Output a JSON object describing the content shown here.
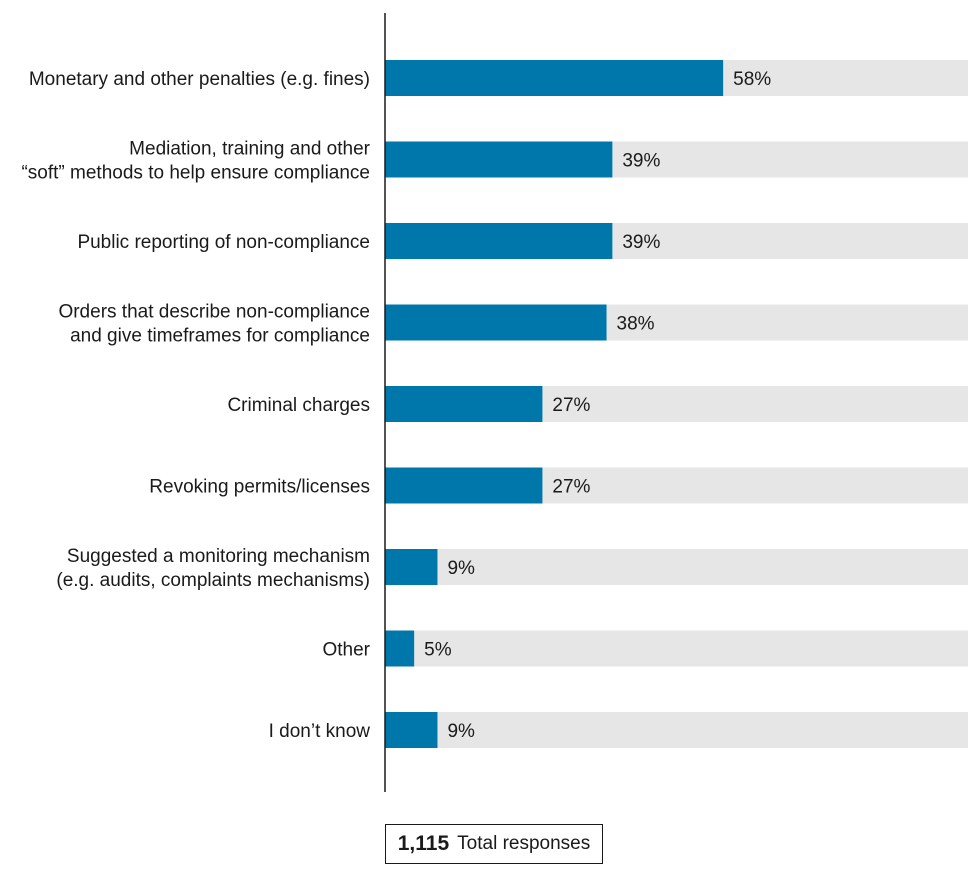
{
  "chart_data": {
    "type": "bar",
    "orientation": "horizontal",
    "categories": [
      [
        "Monetary and other penalties (e.g. fines)"
      ],
      [
        "Mediation, training and other",
        "“soft” methods to help ensure compliance"
      ],
      [
        "Public reporting of non-compliance"
      ],
      [
        "Orders that describe non-compliance",
        "and give timeframes for compliance"
      ],
      [
        "Criminal charges"
      ],
      [
        "Revoking permits/licenses"
      ],
      [
        "Suggested a monitoring mechanism",
        "(e.g. audits, complaints mechanisms)"
      ],
      [
        "Other"
      ],
      [
        "I don’t know"
      ]
    ],
    "values": [
      58,
      39,
      39,
      38,
      27,
      27,
      9,
      5,
      9
    ],
    "value_labels": [
      "58%",
      "39%",
      "39%",
      "38%",
      "27%",
      "27%",
      "9%",
      "5%",
      "9%"
    ],
    "xlim": [
      0,
      100
    ],
    "bar_color": "#0077aa",
    "track_color": "#e6e6e6",
    "axis_color": "#1a1a1a"
  },
  "total": {
    "number": "1,115",
    "label": "Total responses"
  }
}
